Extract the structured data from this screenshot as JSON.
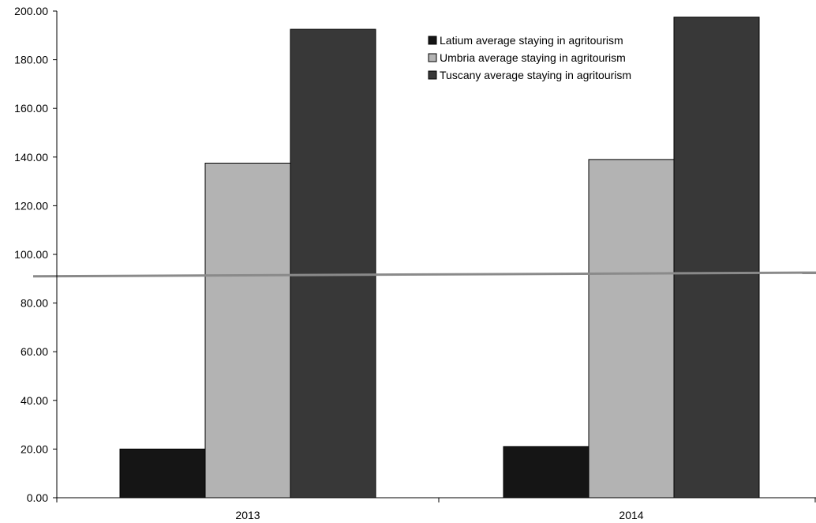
{
  "chart_data": {
    "type": "bar",
    "categories": [
      "2013",
      "2014"
    ],
    "series": [
      {
        "name": "Latium average staying in agritourism",
        "values": [
          20.0,
          21.0
        ],
        "color": "#151515"
      },
      {
        "name": "Umbria average staying in agritourism",
        "values": [
          137.5,
          139.0
        ],
        "color": "#b3b3b3"
      },
      {
        "name": "Tuscany average staying in agritourism",
        "values": [
          192.5,
          197.5
        ],
        "color": "#383838"
      }
    ],
    "ylim": [
      0,
      200
    ],
    "yticks": [
      "0.00",
      "20.00",
      "40.00",
      "60.00",
      "80.00",
      "100.00",
      "120.00",
      "140.00",
      "160.00",
      "180.00",
      "200.00"
    ],
    "reference_line": {
      "start": 91.0,
      "end": 92.5,
      "color": "#8a8a8a"
    },
    "grid": false,
    "legend_position": "top-right",
    "title": "",
    "xlabel": "",
    "ylabel": ""
  }
}
